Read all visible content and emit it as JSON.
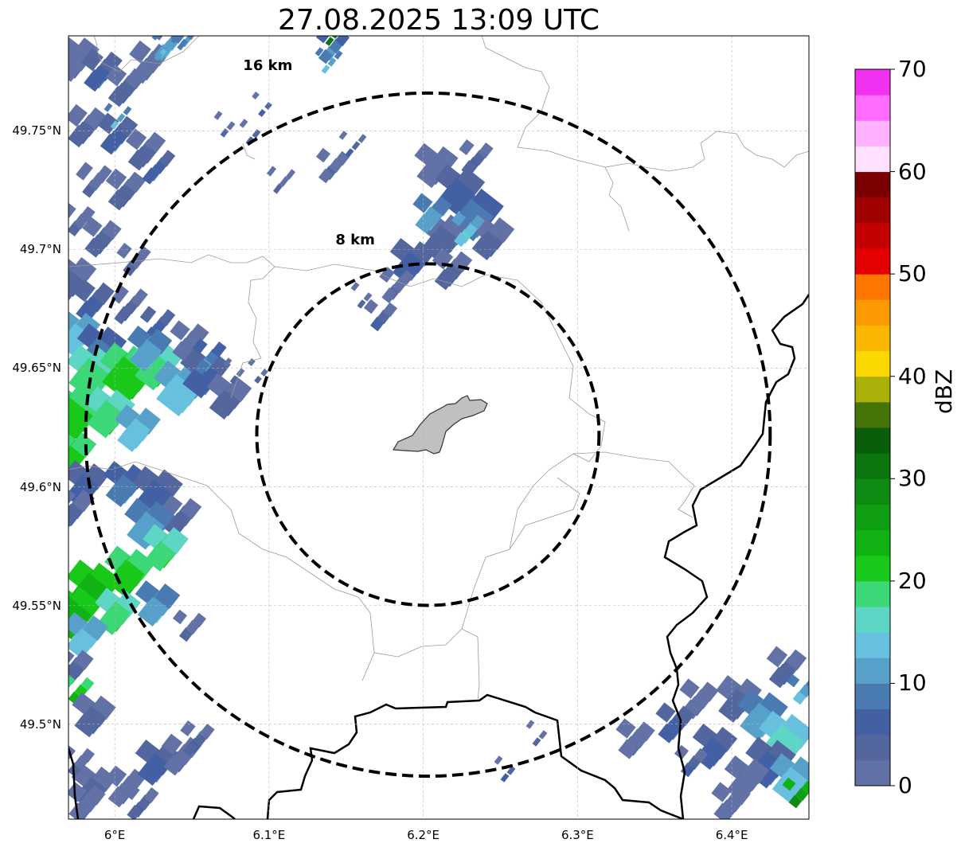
{
  "title": "27.08.2025 13:09 UTC",
  "map": {
    "lat_range": [
      49.46,
      49.79
    ],
    "lon_range": [
      5.97,
      6.45
    ],
    "gridlines": true,
    "lat_ticks": [
      {
        "value": 49.75,
        "label": "49.75°N"
      },
      {
        "value": 49.7,
        "label": "49.7°N"
      },
      {
        "value": 49.65,
        "label": "49.65°N"
      },
      {
        "value": 49.6,
        "label": "49.6°N"
      },
      {
        "value": 49.55,
        "label": "49.55°N"
      },
      {
        "value": 49.5,
        "label": "49.5°N"
      }
    ],
    "lon_ticks": [
      {
        "value": 6.0,
        "label": "6°E"
      },
      {
        "value": 6.1,
        "label": "6.1°E"
      },
      {
        "value": 6.2,
        "label": "6.2°E"
      },
      {
        "value": 6.3,
        "label": "6.3°E"
      },
      {
        "value": 6.4,
        "label": "6.4°E"
      }
    ],
    "range_rings": [
      {
        "label": "8 km",
        "radius_km": 8
      },
      {
        "label": "16 km",
        "radius_km": 16
      }
    ],
    "ring_center": {
      "lat": 49.622,
      "lon": 6.203
    },
    "colors": {
      "ring": "#000000",
      "border": "#000000",
      "municipal_line": "#9a9a9a",
      "city_fill": "#c0c0c0"
    }
  },
  "colorbar": {
    "label": "dBZ",
    "min": 0,
    "max": 70,
    "tick_labels": [
      "0",
      "10",
      "20",
      "30",
      "40",
      "50",
      "60",
      "70"
    ],
    "colors": [
      "#6272a6",
      "#53679e",
      "#4360a5",
      "#4a7ab2",
      "#57a0c9",
      "#67c1de",
      "#5ed6c6",
      "#3cd776",
      "#18c91a",
      "#11b214",
      "#109f13",
      "#0d8b12",
      "#0a760d",
      "#085e0a",
      "#457506",
      "#aab007",
      "#fad800",
      "#fbb600",
      "#fb9a00",
      "#fd7700",
      "#e50000",
      "#c40000",
      "#a10000",
      "#7a0000",
      "#ffe0ff",
      "#ffb0ff",
      "#ff6cff",
      "#f032f0"
    ]
  }
}
